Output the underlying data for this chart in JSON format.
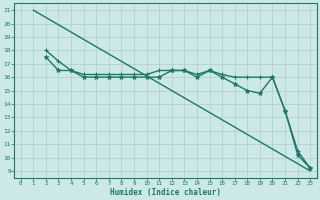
{
  "line1": {
    "x": [
      1,
      23
    ],
    "y": [
      21,
      9
    ],
    "color": "#1a7a6a",
    "linewidth": 1.0
  },
  "line2": {
    "x": [
      2,
      3,
      4,
      5,
      6,
      7,
      8,
      9,
      10,
      11,
      12,
      13,
      14,
      15,
      16,
      17,
      18,
      19,
      20,
      21,
      22,
      23
    ],
    "y": [
      18,
      17.2,
      16.5,
      16.2,
      16.2,
      16.2,
      16.2,
      16.2,
      16.2,
      16.5,
      16.5,
      16.5,
      16.2,
      16.5,
      16.2,
      16.0,
      16.0,
      16.0,
      16.0,
      13.5,
      10.5,
      9.2
    ],
    "color": "#1a7a6a",
    "linewidth": 1.0,
    "marker": "+"
  },
  "line3": {
    "x": [
      2,
      3,
      4,
      5,
      6,
      7,
      8,
      9,
      10,
      11,
      12,
      13,
      14,
      15,
      16,
      17,
      18,
      19,
      20,
      21,
      22,
      23
    ],
    "y": [
      17.5,
      16.5,
      16.5,
      16.0,
      16.0,
      16.0,
      16.0,
      16.0,
      16.0,
      16.0,
      16.5,
      16.5,
      16.0,
      16.5,
      16.0,
      15.5,
      15.0,
      14.8,
      16.0,
      13.5,
      10.2,
      9.2
    ],
    "color": "#1a7a6a",
    "linewidth": 1.0,
    "marker": "*"
  },
  "xlim": [
    -0.5,
    23.5
  ],
  "ylim": [
    8.5,
    21.5
  ],
  "xticks": [
    0,
    1,
    2,
    3,
    4,
    5,
    6,
    7,
    8,
    9,
    10,
    11,
    12,
    13,
    14,
    15,
    16,
    17,
    18,
    19,
    20,
    21,
    22,
    23
  ],
  "yticks": [
    9,
    10,
    11,
    12,
    13,
    14,
    15,
    16,
    17,
    18,
    19,
    20,
    21
  ],
  "xlabel": "Humidex (Indice chaleur)",
  "background_color": "#cde8e8",
  "grid_color": "#b0cccc",
  "line_color": "#1a7a6a"
}
